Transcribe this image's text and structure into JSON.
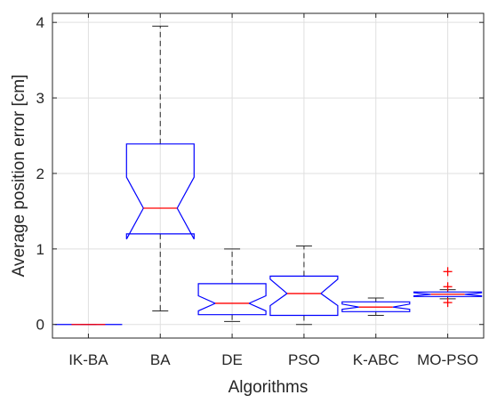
{
  "chart_data": {
    "type": "boxplot",
    "title": "",
    "xlabel": "Algorithms",
    "ylabel": "Average position error [cm]",
    "ylim": [
      -0.18,
      4.12
    ],
    "yticks": [
      0,
      1,
      2,
      3,
      4
    ],
    "grid": true,
    "notched": true,
    "colors": {
      "box": "#0000ff",
      "median": "#ff0000",
      "whisker": "#262626",
      "outlier": "#ff0000",
      "grid": "#dfdfdf",
      "axis": "#262626"
    },
    "categories": [
      "IK-BA",
      "BA",
      "DE",
      "PSO",
      "K-ABC",
      "MO-PSO"
    ],
    "boxes": [
      {
        "label": "IK-BA",
        "min": 0.0,
        "q1": 0.0,
        "median": 0.0,
        "q3": 0.0,
        "max": 0.0,
        "notch_low": 0.0,
        "notch_high": 0.0,
        "outliers": []
      },
      {
        "label": "BA",
        "min": 0.18,
        "q1": 1.2,
        "median": 1.54,
        "q3": 2.39,
        "max": 3.95,
        "notch_low": 1.13,
        "notch_high": 1.95,
        "outliers": []
      },
      {
        "label": "DE",
        "min": 0.04,
        "q1": 0.13,
        "median": 0.28,
        "q3": 0.54,
        "max": 1.0,
        "notch_low": 0.18,
        "notch_high": 0.38,
        "outliers": []
      },
      {
        "label": "PSO",
        "min": 0.0,
        "q1": 0.12,
        "median": 0.41,
        "q3": 0.64,
        "max": 1.04,
        "notch_low": 0.25,
        "notch_high": 0.6,
        "outliers": []
      },
      {
        "label": "K-ABC",
        "min": 0.12,
        "q1": 0.17,
        "median": 0.23,
        "q3": 0.3,
        "max": 0.35,
        "notch_low": 0.2,
        "notch_high": 0.27,
        "outliers": []
      },
      {
        "label": "MO-PSO",
        "min": 0.34,
        "q1": 0.37,
        "median": 0.4,
        "q3": 0.43,
        "max": 0.46,
        "notch_low": 0.38,
        "notch_high": 0.42,
        "outliers": [
          0.7,
          0.5,
          0.29
        ]
      }
    ]
  }
}
